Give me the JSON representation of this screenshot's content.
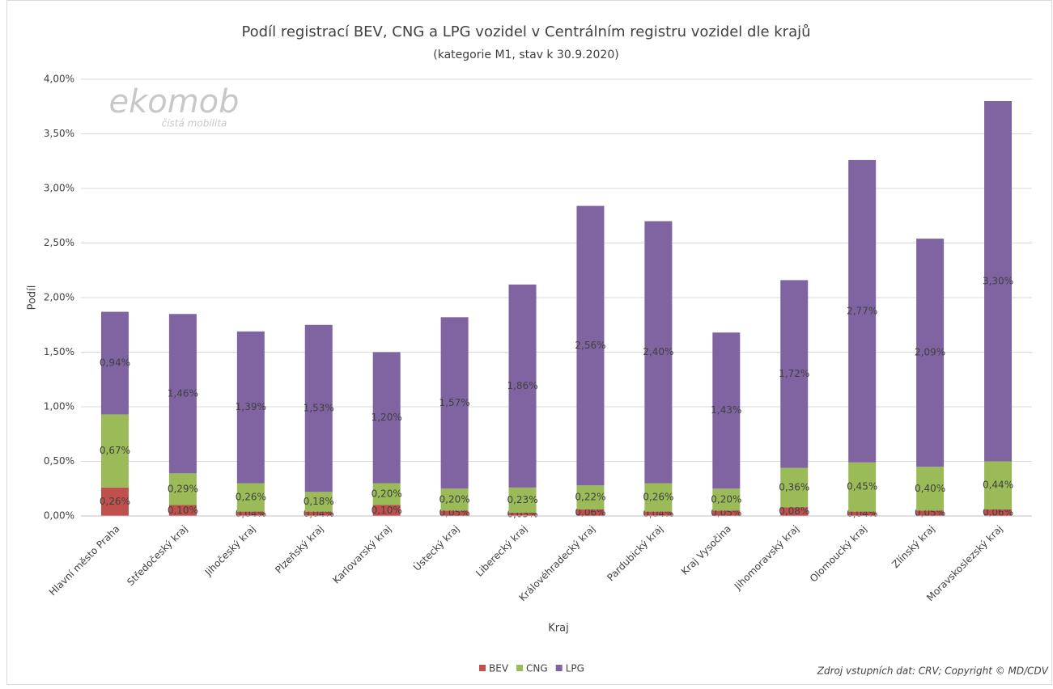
{
  "chart_data": {
    "type": "stacked_bar",
    "title": "Podíl registrací BEV, CNG a LPG vozidel v Centrálním registru vozidel dle krajů",
    "subtitle": "(kategorie M1,  stav k 30.9.2020)",
    "xlabel": "Kraj",
    "ylabel": "Podíl",
    "watermark": "ekomob",
    "watermark_tagline": "čistá mobilita",
    "source": "Zdroj vstupních dat: CRV; Copyright © MD/CDV",
    "categories": [
      "Hlavní město Praha",
      "Středočeský kraj",
      "Jihočeský kraj",
      "Plzeňský kraj",
      "Karlovarský kraj",
      "Ústecký kraj",
      "Liberecký kraj",
      "Královéhradecký kraj",
      "Pardubický kraj",
      "Kraj Vysočina",
      "Jihomoravský kraj",
      "Olomoucký kraj",
      "Zlínský kraj",
      "Moravskoslezský kraj"
    ],
    "series": [
      {
        "name": "BEV",
        "color": "#c0504d",
        "values": [
          0.26,
          0.1,
          0.04,
          0.04,
          0.1,
          0.05,
          0.03,
          0.06,
          0.04,
          0.05,
          0.08,
          0.04,
          0.05,
          0.06
        ],
        "value_labels": [
          "0,26%",
          "0,10%",
          "0,04%",
          "0,04%",
          "0,10%",
          "0,05%",
          "0,03%",
          "0,06%",
          "0,04%",
          "0,05%",
          "0,08%",
          "0,04%",
          "0,05%",
          "0,06%"
        ]
      },
      {
        "name": "CNG",
        "color": "#9bbb59",
        "values": [
          0.67,
          0.29,
          0.26,
          0.18,
          0.2,
          0.2,
          0.23,
          0.22,
          0.26,
          0.2,
          0.36,
          0.45,
          0.4,
          0.44
        ],
        "value_labels": [
          "0,67%",
          "0,29%",
          "0,26%",
          "0,18%",
          "0,20%",
          "0,20%",
          "0,23%",
          "0,22%",
          "0,26%",
          "0,20%",
          "0,36%",
          "0,45%",
          "0,40%",
          "0,44%"
        ]
      },
      {
        "name": "LPG",
        "color": "#8064a2",
        "values": [
          0.94,
          1.46,
          1.39,
          1.53,
          1.2,
          1.57,
          1.86,
          2.56,
          2.4,
          1.43,
          1.72,
          2.77,
          2.09,
          3.3
        ],
        "value_labels": [
          "0,94%",
          "1,46%",
          "1,39%",
          "1,53%",
          "1,20%",
          "1,57%",
          "1,86%",
          "2,56%",
          "2,40%",
          "1,43%",
          "1,72%",
          "2,77%",
          "2,09%",
          "3,30%"
        ]
      }
    ],
    "ylim": [
      0,
      4
    ],
    "yticks": [
      {
        "value": 0,
        "label": "0,00%"
      },
      {
        "value": 0.5,
        "label": "0,50%"
      },
      {
        "value": 1,
        "label": "1,00%"
      },
      {
        "value": 1.5,
        "label": "1,50%"
      },
      {
        "value": 2,
        "label": "2,00%"
      },
      {
        "value": 2.5,
        "label": "2,50%"
      },
      {
        "value": 3,
        "label": "3,00%"
      },
      {
        "value": 3.5,
        "label": "3,50%"
      },
      {
        "value": 4,
        "label": "4,00%"
      }
    ],
    "grid": true
  }
}
